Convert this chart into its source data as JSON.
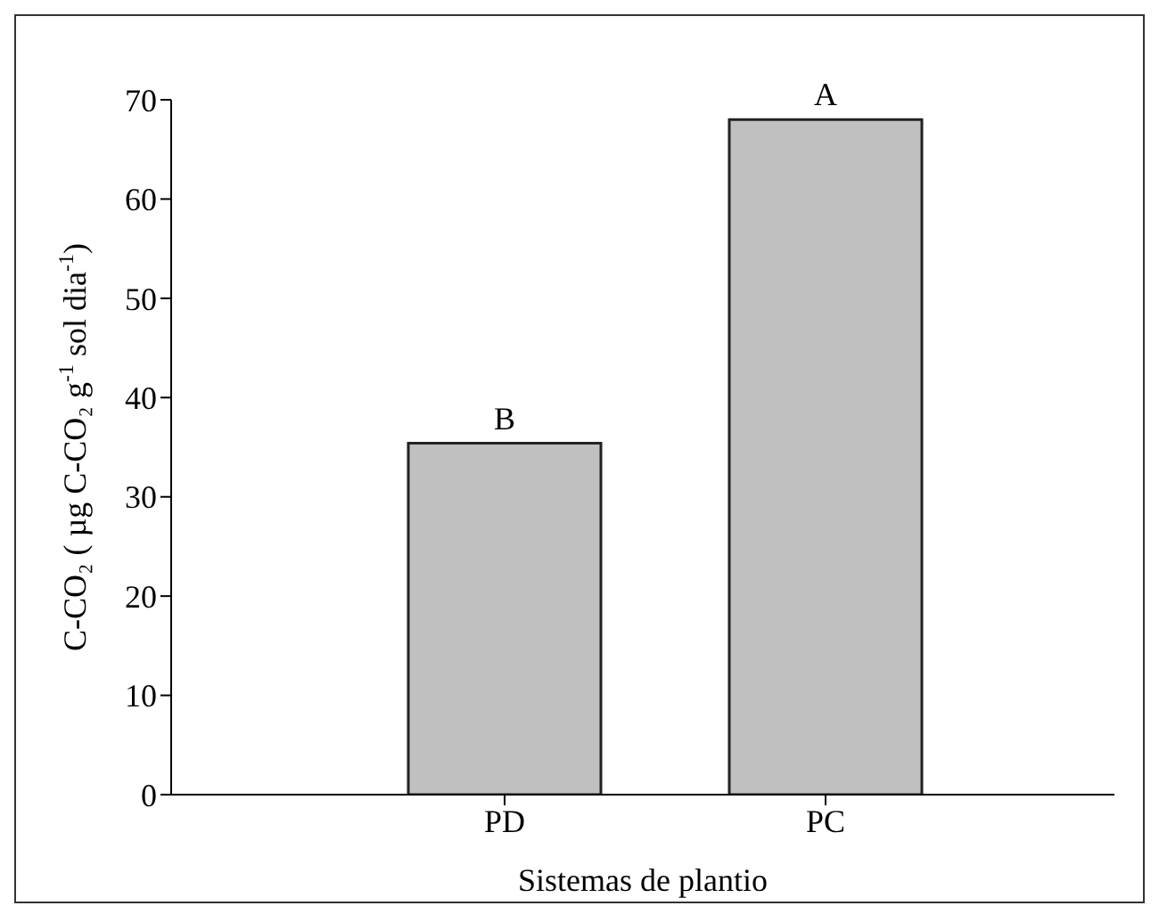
{
  "chart_data": {
    "type": "bar",
    "xlabel": "Sistemas de plantio",
    "ylabel": "C-CO₂ ( µg C-CO₂ g$^{-1}$ sol dia$^{-1}$)",
    "categories": [
      "PD",
      "PC"
    ],
    "values": [
      35.4,
      68
    ],
    "color": "#c0c0c0",
    "ylim": [
      0,
      70
    ],
    "yticks": [
      0,
      10,
      20,
      30,
      40,
      50,
      60,
      70
    ],
    "grid": false,
    "legend": false,
    "annotations": [
      {
        "text": "B",
        "x": "PD",
        "y": 35.4
      },
      {
        "text": "A",
        "x": "PC",
        "y": 68
      }
    ]
  }
}
